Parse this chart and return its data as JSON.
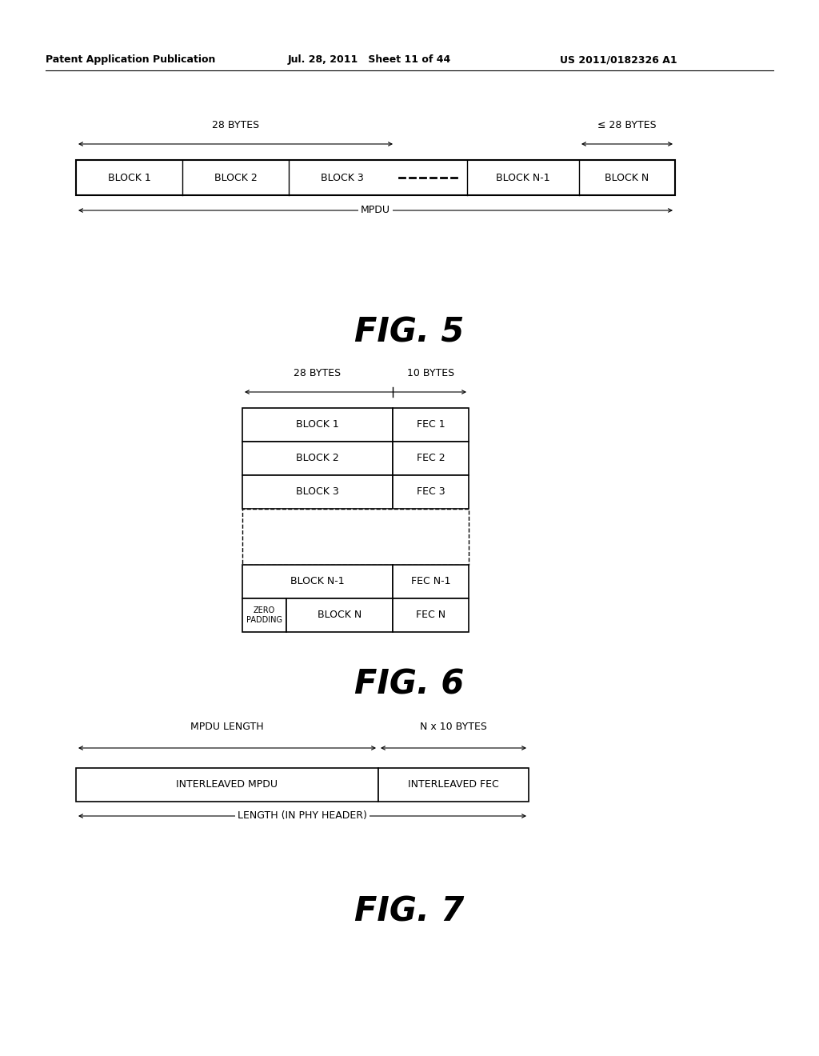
{
  "header_left": "Patent Application Publication",
  "header_mid": "Jul. 28, 2011   Sheet 11 of 44",
  "header_right": "US 2011/0182326 A1",
  "bg_color": "#ffffff",
  "fig5_title": "FIG. 5",
  "fig6_title": "FIG. 6",
  "fig7_title": "FIG. 7",
  "fig5_label_28": "28 BYTES",
  "fig5_label_le28": "≤ 28 BYTES",
  "fig5_blocks": [
    "BLOCK 1",
    "BLOCK 2",
    "BLOCK 3",
    "BLOCK N-1",
    "BLOCK N"
  ],
  "fig5_mpdu_label": "MPDU",
  "fig6_label_28": "28 BYTES",
  "fig6_label_10": "10 BYTES",
  "fig7_label_mpdu": "MPDU LENGTH",
  "fig7_label_n10": "N x 10 BYTES",
  "fig7_cells": [
    "INTERLEAVED MPDU",
    "INTERLEAVED FEC"
  ],
  "fig7_bottom_label": "LENGTH (IN PHY HEADER)"
}
